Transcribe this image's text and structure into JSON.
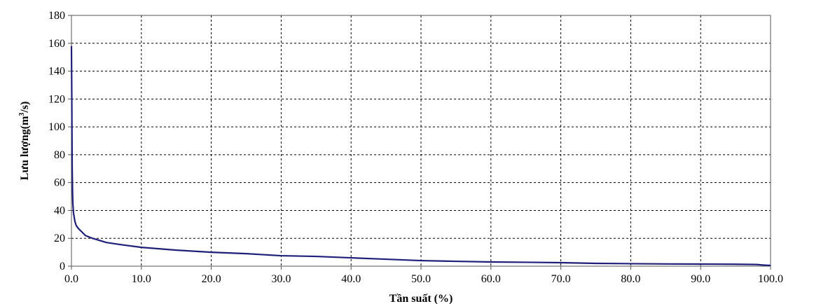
{
  "chart_data": {
    "type": "line",
    "title": "",
    "xlabel": "Tần suất (%)",
    "ylabel_main": "Lưu lượng(m",
    "ylabel_sup": "3",
    "ylabel_tail": "/s)",
    "xlim": [
      0,
      100
    ],
    "ylim": [
      0,
      180
    ],
    "xticks": [
      "0.0",
      "10.0",
      "20.0",
      "30.0",
      "40.0",
      "50.0",
      "60.0",
      "70.0",
      "80.0",
      "90.0",
      "100.0"
    ],
    "yticks": [
      "0",
      "20",
      "40",
      "60",
      "80",
      "100",
      "120",
      "140",
      "160",
      "180"
    ],
    "grid": true,
    "line_color": "#1f1f7a",
    "series": [
      {
        "x": [
          0.0,
          0.05,
          0.1,
          0.15,
          0.2,
          0.3,
          0.5,
          0.7,
          1.0,
          1.5,
          2.0,
          3.0,
          4.0,
          5.0,
          7.0,
          10.0,
          15.0,
          20.0,
          25.0,
          30.0,
          35.0,
          40.0,
          45.0,
          50.0,
          55.0,
          60.0,
          65.0,
          70.0,
          75.0,
          80.0,
          85.0,
          90.0,
          95.0,
          98.0,
          99.0,
          100.0
        ],
        "y": [
          158,
          120,
          72,
          55,
          45,
          38,
          32,
          29,
          27,
          24.5,
          22,
          20,
          18.5,
          17,
          15.5,
          13.5,
          11.5,
          10,
          9,
          7.5,
          7,
          6,
          5,
          4,
          3.5,
          3,
          2.8,
          2.5,
          2,
          1.8,
          1.6,
          1.5,
          1.4,
          1.2,
          0.8,
          0.5
        ]
      }
    ]
  }
}
